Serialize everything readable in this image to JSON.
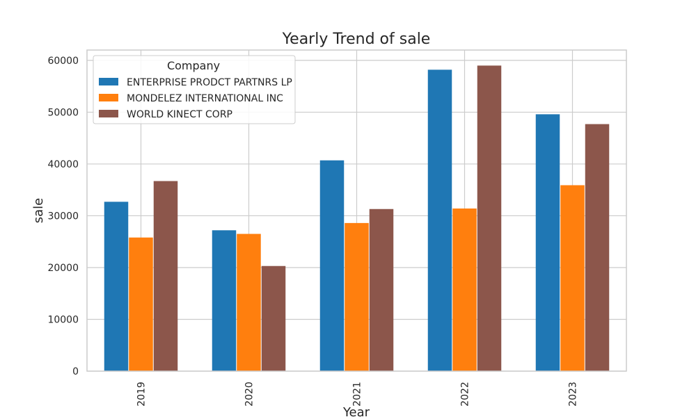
{
  "chart_data": {
    "type": "bar",
    "title": "Yearly Trend of sale",
    "xlabel": "Year",
    "ylabel": "sale",
    "categories": [
      "2019",
      "2020",
      "2021",
      "2022",
      "2023"
    ],
    "ylim": [
      0,
      62000
    ],
    "yticks": [
      0,
      10000,
      20000,
      30000,
      40000,
      50000,
      60000
    ],
    "ytick_labels": [
      "0",
      "10000",
      "20000",
      "30000",
      "40000",
      "50000",
      "60000"
    ],
    "grid": true,
    "legend": {
      "title": "Company",
      "placement": "top-left"
    },
    "series": [
      {
        "name": "ENTERPRISE PRODCT PARTNRS LP",
        "color": "#1f77b4",
        "values": [
          32700,
          27200,
          40700,
          58200,
          49600
        ]
      },
      {
        "name": "MONDELEZ INTERNATIONAL INC",
        "color": "#ff7f0e",
        "values": [
          25800,
          26500,
          28600,
          31400,
          35900
        ]
      },
      {
        "name": "WORLD KINECT CORP",
        "color": "#8c564b",
        "values": [
          36700,
          20300,
          31300,
          59000,
          47700
        ]
      }
    ]
  }
}
